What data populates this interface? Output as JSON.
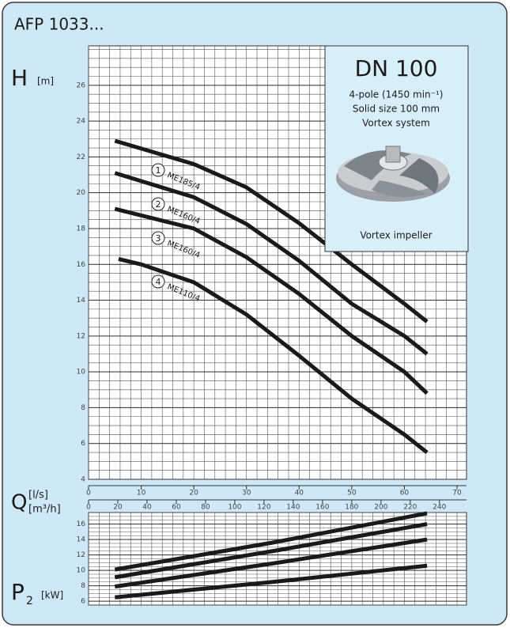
{
  "title": "AFP 1033...",
  "info_box": {
    "title": "DN 100",
    "lines": [
      "4-pole (1450 min⁻¹)",
      "Solid size 100 mm",
      "Vortex system"
    ],
    "caption": "Vortex impeller"
  },
  "chart_data": [
    {
      "type": "line",
      "y_label": "H",
      "y_unit": "[m]",
      "x_label": "Q",
      "x_unit": "[l/s]",
      "x2_unit": "[m³/h]",
      "xlim": [
        0,
        71.8
      ],
      "xticks": [
        0,
        10,
        20,
        30,
        40,
        50,
        60,
        70
      ],
      "x2lim": [
        0,
        258.5
      ],
      "x2ticks": [
        0,
        20,
        40,
        60,
        80,
        100,
        120,
        140,
        160,
        180,
        200,
        220,
        240
      ],
      "ylim": [
        4,
        28.2
      ],
      "yticks": [
        4,
        6,
        8,
        10,
        12,
        14,
        16,
        18,
        20,
        22,
        24,
        26
      ],
      "grid": true,
      "minor_grid": {
        "x": 2,
        "y": 0.5
      },
      "series": [
        {
          "name": "ME185/4",
          "number": "1",
          "color": "#1a1a1a",
          "x": [
            5,
            20,
            30,
            40,
            50,
            60,
            64.3
          ],
          "values": [
            22.9,
            21.6,
            20.3,
            18.3,
            16.0,
            13.8,
            12.8
          ]
        },
        {
          "name": "ME160/4",
          "number": "2",
          "color": "#1a1a1a",
          "x": [
            5,
            20,
            30,
            40,
            50,
            60,
            64.3
          ],
          "values": [
            21.1,
            19.75,
            18.25,
            16.2,
            13.8,
            12.0,
            11.0
          ]
        },
        {
          "name": "ME160/4",
          "number": "3",
          "color": "#1a1a1a",
          "x": [
            5,
            20,
            30,
            40,
            50,
            60,
            64.3
          ],
          "values": [
            19.1,
            18.0,
            16.4,
            14.35,
            12.0,
            10.0,
            8.8
          ]
        },
        {
          "name": "ME110/4",
          "number": "4",
          "color": "#1a1a1a",
          "x": [
            5.7,
            10,
            20,
            30,
            40,
            50,
            60,
            64.3
          ],
          "values": [
            16.3,
            16.0,
            15.0,
            13.2,
            10.9,
            8.5,
            6.5,
            5.5
          ]
        }
      ]
    },
    {
      "type": "line",
      "y_label": "P",
      "y_label_sub": "2",
      "y_unit": "[kW]",
      "xlim": [
        0,
        71.8
      ],
      "ylim": [
        5.5,
        17.5
      ],
      "yticks": [
        6,
        8,
        10,
        12,
        14,
        16
      ],
      "grid": true,
      "minor_grid": {
        "x": 2,
        "y": 0.5
      },
      "series": [
        {
          "color": "#1a1a1a",
          "x": [
            5,
            35,
            64.3
          ],
          "values": [
            10.1,
            13.6,
            17.4
          ]
        },
        {
          "color": "#1a1a1a",
          "x": [
            5,
            35,
            64.3
          ],
          "values": [
            9.1,
            12.5,
            16.0
          ]
        },
        {
          "color": "#1a1a1a",
          "x": [
            5,
            35,
            64.3
          ],
          "values": [
            7.9,
            10.9,
            14.0
          ]
        },
        {
          "color": "#1a1a1a",
          "x": [
            5,
            35,
            64.3
          ],
          "values": [
            6.5,
            8.5,
            10.6
          ]
        }
      ]
    }
  ]
}
